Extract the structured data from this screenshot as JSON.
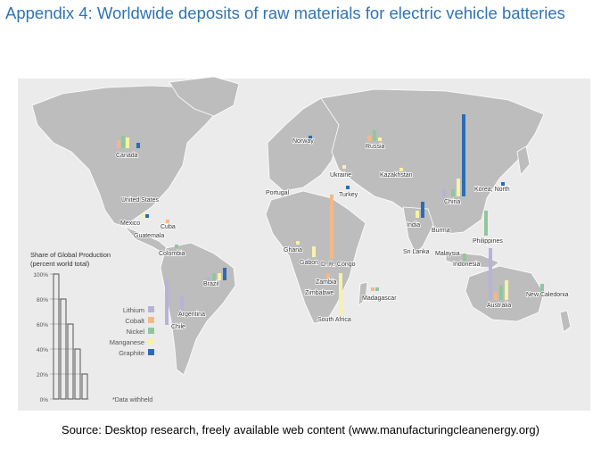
{
  "title": "Appendix 4: Worldwide deposits of raw materials for electric vehicle batteries",
  "source": "Source: Desktop research, freely available web content (www.manufacturingcleanenergy.org)",
  "chart_title_line1": "Share of Global Production",
  "chart_title_line2": "(percent world total)",
  "y_ticks": [
    "100%",
    "80%",
    "60%",
    "40%",
    "20%",
    "0%"
  ],
  "note": "*Data withheld",
  "legend": [
    {
      "label": "Lithium",
      "color": "#b9b1d9"
    },
    {
      "label": "Cobalt",
      "color": "#f2b987"
    },
    {
      "label": "Nickel",
      "color": "#8fc79d"
    },
    {
      "label": "Manganese",
      "color": "#f7f2a6"
    },
    {
      "label": "Graphite",
      "color": "#2b6db5"
    }
  ],
  "countries": [
    "Canada",
    "United States",
    "Mexico",
    "Cuba",
    "Guatemala",
    "Colombia",
    "Brazil",
    "Chile",
    "Argentina",
    "Norway",
    "Russia",
    "Ukraine",
    "Kazakhstan",
    "Portugal",
    "Turkey",
    "China",
    "Korea, North",
    "India",
    "Burma",
    "Philippines",
    "Sri Lanka",
    "Malaysia",
    "Indonesia",
    "Ghana",
    "Gabon",
    "D. R. Congo",
    "Zambia",
    "Zimbabwe",
    "South Africa",
    "Madagascar",
    "Australia",
    "New Caledonia"
  ],
  "colors": {
    "title": "#2e74b5",
    "land": "#bdbdbd",
    "ocean": "#ebebeb",
    "lithium": "#b9b1d9",
    "cobalt": "#f2b987",
    "nickel": "#8fc79d",
    "manganese": "#f7f2a6",
    "graphite": "#2b6db5"
  }
}
